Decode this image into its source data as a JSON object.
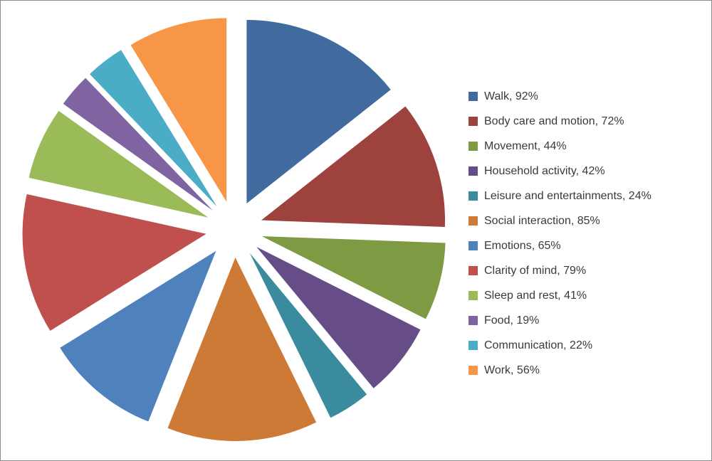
{
  "chart_data": {
    "type": "pie",
    "exploded": true,
    "legend_position": "right",
    "slices": [
      {
        "label": "Walk, 92%",
        "category": "Walk",
        "value": 92,
        "color": "#416a9e"
      },
      {
        "label": "Body care and motion, 72%",
        "category": "Body care and motion",
        "value": 72,
        "color": "#9e423d"
      },
      {
        "label": "Movement, 44%",
        "category": "Movement",
        "value": 44,
        "color": "#7e9b43"
      },
      {
        "label": "Household activity, 42%",
        "category": "Household activity",
        "value": 42,
        "color": "#664d87"
      },
      {
        "label": "Leisure and entertainments, 24%",
        "category": "Leisure and entertainments",
        "value": 24,
        "color": "#3a8b9e"
      },
      {
        "label": "Social interaction, 85%",
        "category": "Social interaction",
        "value": 85,
        "color": "#cc7a35"
      },
      {
        "label": "Emotions, 65%",
        "category": "Emotions",
        "value": 65,
        "color": "#4f81bd"
      },
      {
        "label": "Clarity of mind, 79%",
        "category": "Clarity of mind",
        "value": 79,
        "color": "#c0504d"
      },
      {
        "label": "Sleep and rest, 41%",
        "category": "Sleep and rest",
        "value": 41,
        "color": "#9bbb59"
      },
      {
        "label": "Food, 19%",
        "category": "Food",
        "value": 19,
        "color": "#8064a2"
      },
      {
        "label": "Communication, 22%",
        "category": "Communication",
        "value": 22,
        "color": "#4bacc6"
      },
      {
        "label": "Work, 56%",
        "category": "Work",
        "value": 56,
        "color": "#f79646"
      }
    ]
  }
}
